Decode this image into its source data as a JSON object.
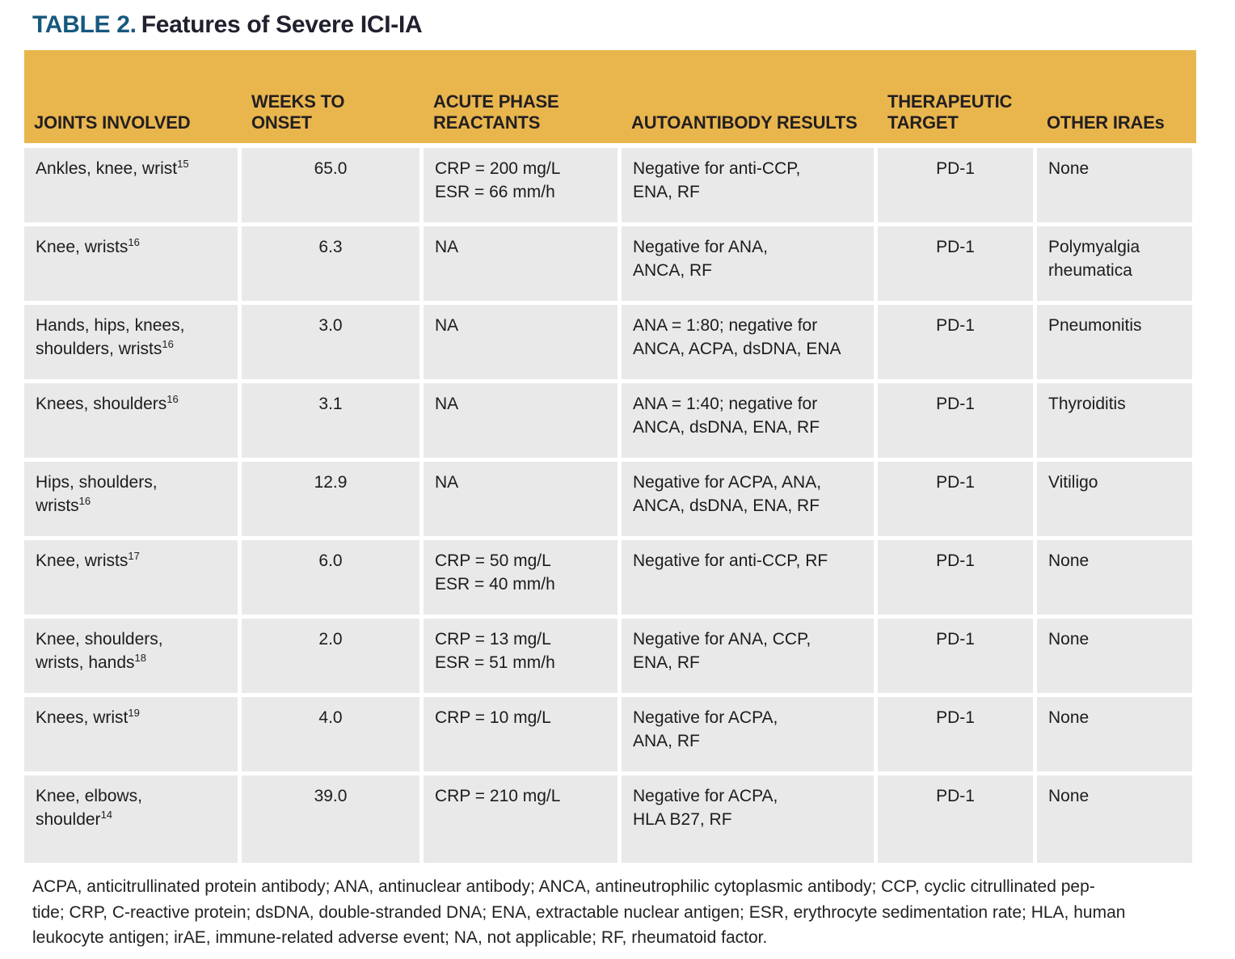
{
  "title": {
    "label": "TABLE 2.",
    "text": "Features of Severe ICI-IA"
  },
  "colors": {
    "header_bg": "#E9B64E",
    "cell_bg": "#E9E9E9",
    "title_accent": "#16587E",
    "header_text": "#231F20"
  },
  "table": {
    "columns": [
      "JOINTS INVOLVED",
      "WEEKS TO ONSET",
      "ACUTE PHASE\nREACTANTS",
      "AUTOANTIBODY RESULTS",
      "THERAPEUTIC\nTARGET",
      "OTHER IRAEs"
    ],
    "rows": [
      {
        "joints": "Ankles, knee, wrist",
        "ref": "15",
        "weeks": "65.0",
        "acute": "CRP = 200 mg/L\nESR = 66 mm/h",
        "autoantibody": "Negative for anti-CCP,\nENA, RF",
        "target": "PD-1",
        "other": "None"
      },
      {
        "joints": "Knee, wrists",
        "ref": "16",
        "weeks": "6.3",
        "acute": "NA",
        "autoantibody": "Negative for ANA,\nANCA, RF",
        "target": "PD-1",
        "other": "Polymyalgia\nrheumatica"
      },
      {
        "joints": "Hands, hips, knees,\nshoulders, wrists",
        "ref": "16",
        "weeks": "3.0",
        "acute": "NA",
        "autoantibody": "ANA = 1:80; negative for\nANCA, ACPA, dsDNA, ENA",
        "target": "PD-1",
        "other": "Pneumonitis"
      },
      {
        "joints": "Knees, shoulders",
        "ref": "16",
        "weeks": "3.1",
        "acute": "NA",
        "autoantibody": "ANA = 1:40; negative for\nANCA, dsDNA, ENA, RF",
        "target": "PD-1",
        "other": "Thyroiditis"
      },
      {
        "joints": "Hips, shoulders,\nwrists",
        "ref": "16",
        "weeks": "12.9",
        "acute": "NA",
        "autoantibody": "Negative for ACPA, ANA,\nANCA, dsDNA, ENA, RF",
        "target": "PD-1",
        "other": "Vitiligo"
      },
      {
        "joints": "Knee, wrists",
        "ref": "17",
        "weeks": "6.0",
        "acute": "CRP = 50 mg/L\nESR = 40 mm/h",
        "autoantibody": "Negative for anti-CCP, RF",
        "target": "PD-1",
        "other": "None"
      },
      {
        "joints": "Knee, shoulders,\nwrists, hands",
        "ref": "18",
        "weeks": "2.0",
        "acute": "CRP = 13 mg/L\nESR = 51 mm/h",
        "autoantibody": "Negative for ANA, CCP,\nENA, RF",
        "target": "PD-1",
        "other": "None"
      },
      {
        "joints": "Knees, wrist",
        "ref": "19",
        "weeks": "4.0",
        "acute": "CRP = 10 mg/L",
        "autoantibody": "Negative for ACPA,\nANA, RF",
        "target": "PD-1",
        "other": "None"
      },
      {
        "joints": "Knee, elbows,\nshoulder",
        "ref": "14",
        "weeks": "39.0",
        "acute": "CRP = 210 mg/L",
        "autoantibody": "Negative for ACPA,\nHLA B27, RF",
        "target": "PD-1",
        "other": "None"
      }
    ]
  },
  "footnote": "ACPA, anticitrullinated protein antibody; ANA, antinuclear antibody; ANCA, antineutrophilic cytoplasmic antibody; CCP, cyclic citrullinated pep-\ntide; CRP, C-reactive protein; dsDNA, double-stranded DNA; ENA, extractable nuclear antigen; ESR, erythrocyte sedimentation rate; HLA, human\nleukocyte antigen; irAE, immune-related adverse event; NA, not applicable; RF, rheumatoid factor."
}
